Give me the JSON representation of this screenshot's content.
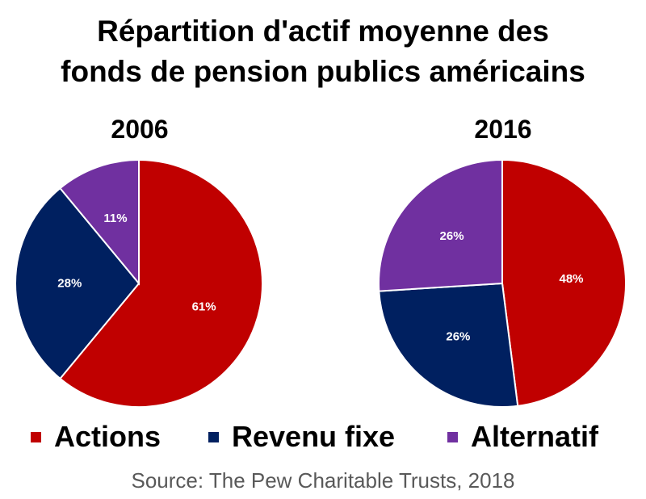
{
  "title_line1": "Répartition d'actif moyenne des",
  "title_line2": "fonds de pension publics américains",
  "source": "Source: The Pew Charitable Trusts, 2018",
  "colors": {
    "Actions": "#C00000",
    "Revenu fixe": "#002060",
    "Alternatif": "#7030A0"
  },
  "legend": [
    "Actions",
    "Revenu fixe",
    "Alternatif"
  ],
  "chart_data": [
    {
      "type": "pie",
      "title": "2006",
      "categories": [
        "Actions",
        "Revenu fixe",
        "Alternatif"
      ],
      "values": [
        61,
        28,
        11
      ],
      "labels": [
        "61%",
        "28%",
        "11%"
      ]
    },
    {
      "type": "pie",
      "title": "2016",
      "categories": [
        "Actions",
        "Revenu fixe",
        "Alternatif"
      ],
      "values": [
        48,
        26,
        26
      ],
      "labels": [
        "48%",
        "26%",
        "26%"
      ]
    }
  ]
}
